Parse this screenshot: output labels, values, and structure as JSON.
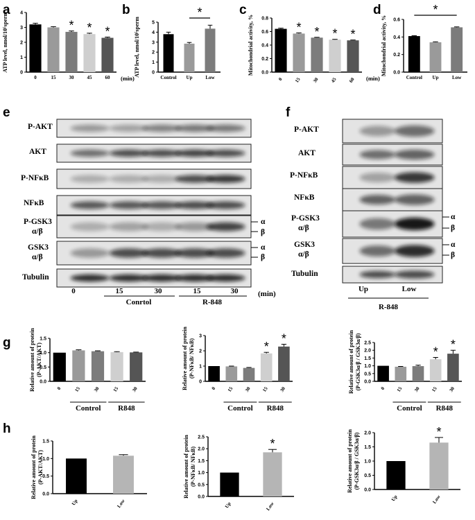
{
  "panel_letters": [
    "a",
    "b",
    "c",
    "d",
    "e",
    "f",
    "g",
    "h"
  ],
  "unit_min": "(min)",
  "colors": {
    "black": "#000000",
    "g1": "#9a9a9a",
    "g2": "#7c7c7c",
    "g3": "#cfcfcf",
    "g4": "#555555",
    "light": "#b5b5b5"
  },
  "chart_data": [
    {
      "id": "a",
      "type": "bar",
      "ylabel": "ATP level, nmol/10⁵sperm",
      "categories": [
        "0",
        "15",
        "30",
        "45",
        "60"
      ],
      "values": [
        3.2,
        3.0,
        2.7,
        2.55,
        2.3
      ],
      "errors": [
        0.08,
        0.05,
        0.06,
        0.06,
        0.05
      ],
      "ylim": [
        0,
        4
      ],
      "yticks": [
        "0",
        "1",
        "2",
        "3",
        "4"
      ],
      "significant": [
        false,
        false,
        true,
        true,
        true
      ],
      "xunit": "(min)"
    },
    {
      "id": "b",
      "type": "bar",
      "ylabel": "ATP level, nmol/10⁵sperm",
      "categories": [
        "Control",
        "Up",
        "Low"
      ],
      "values": [
        3.8,
        2.85,
        4.35
      ],
      "errors": [
        0.2,
        0.12,
        0.35
      ],
      "ylim": [
        0,
        5
      ],
      "yticks": [
        "0",
        "1",
        "2",
        "3",
        "4",
        "5"
      ],
      "bracket": [
        1,
        2
      ]
    },
    {
      "id": "c",
      "type": "bar",
      "ylabel": "Mitochondrial activity, %",
      "categories": [
        "0",
        "15",
        "30",
        "45",
        "60"
      ],
      "values": [
        0.64,
        0.57,
        0.51,
        0.48,
        0.47
      ],
      "errors": [
        0.01,
        0.01,
        0.005,
        0.005,
        0.005
      ],
      "ylim": [
        0,
        0.8
      ],
      "yticks": [
        "0.0",
        "0.2",
        "0.4",
        "0.6",
        "0.8"
      ],
      "significant": [
        false,
        true,
        true,
        true,
        true
      ],
      "xunit": "(min)"
    },
    {
      "id": "d",
      "type": "bar",
      "ylabel": "Mitochondrial activity, %",
      "categories": [
        "Control",
        "Up",
        "Low"
      ],
      "values": [
        0.41,
        0.34,
        0.51
      ],
      "errors": [
        0.005,
        0.005,
        0.005
      ],
      "ylim": [
        0,
        0.6
      ],
      "yticks": [
        "0.0",
        "0.2",
        "0.4",
        "0.6"
      ],
      "bracket": [
        0,
        2
      ]
    },
    {
      "id": "g1",
      "type": "bar",
      "ylabel": "Relative amount of protein (P-AKT/AKT)",
      "categories": [
        "0",
        "15",
        "30",
        "15",
        "30"
      ],
      "values": [
        1.0,
        1.08,
        1.05,
        1.02,
        1.01
      ],
      "errors": [
        0,
        0.02,
        0.015,
        0.015,
        0.01
      ],
      "ylim": [
        0,
        1.5
      ],
      "yticks": [
        "0.0",
        "0.5",
        "1.0",
        "1.5"
      ],
      "significant": [
        false,
        false,
        false,
        false,
        false
      ],
      "groups": [
        "Control",
        "R848"
      ]
    },
    {
      "id": "g2",
      "type": "bar",
      "ylabel": "Relative amount of protein (P-NFκB/ NFκB)",
      "categories": [
        "0",
        "15",
        "30",
        "15",
        "30"
      ],
      "values": [
        1.0,
        0.98,
        0.88,
        1.83,
        2.28
      ],
      "errors": [
        0,
        0.02,
        0.03,
        0.07,
        0.15
      ],
      "ylim": [
        0,
        3
      ],
      "yticks": [
        "0",
        "1",
        "2",
        "3"
      ],
      "significant": [
        false,
        false,
        false,
        true,
        true
      ],
      "groups": [
        "Control",
        "R848"
      ]
    },
    {
      "id": "g3",
      "type": "bar",
      "ylabel": "Relative amount of protein (P-GSK3α/β / GSK3α/β)",
      "categories": [
        "0",
        "15",
        "30",
        "15",
        "30"
      ],
      "values": [
        1.0,
        0.94,
        0.98,
        1.42,
        1.78
      ],
      "errors": [
        0,
        0.02,
        0.06,
        0.12,
        0.22
      ],
      "ylim": [
        0,
        2.5
      ],
      "yticks": [
        "0.0",
        "0.5",
        "1.0",
        "1.5",
        "2.0",
        "2.5"
      ],
      "significant": [
        false,
        false,
        false,
        true,
        true
      ],
      "groups": [
        "Control",
        "R848"
      ]
    },
    {
      "id": "h1",
      "type": "bar",
      "ylabel": "Relative amount of protein (P-AKT/AKT)",
      "categories": [
        "Up",
        "Low"
      ],
      "values": [
        1.0,
        1.08
      ],
      "errors": [
        0,
        0.03
      ],
      "ylim": [
        0,
        1.5
      ],
      "yticks": [
        "0.0",
        "0.5",
        "1.0",
        "1.5"
      ],
      "significant": [
        false,
        false
      ]
    },
    {
      "id": "h2",
      "type": "bar",
      "ylabel": "Relative amount of protein (P-NFκB/ NFκB)",
      "categories": [
        "Up",
        "Low"
      ],
      "values": [
        1.0,
        1.85
      ],
      "errors": [
        0,
        0.12
      ],
      "ylim": [
        0,
        2.5
      ],
      "yticks": [
        "0.0",
        "0.5",
        "1.0",
        "1.5",
        "2.0",
        "2.5"
      ],
      "significant": [
        false,
        true
      ]
    },
    {
      "id": "h3",
      "type": "bar",
      "ylabel": "Relative amount of protein (P-GSK3α/β / GSK3α/β)",
      "categories": [
        "Up",
        "Low"
      ],
      "values": [
        1.0,
        1.65
      ],
      "errors": [
        0,
        0.18
      ],
      "ylim": [
        0,
        2.0
      ],
      "yticks": [
        "0.0",
        "0.5",
        "1.0",
        "1.5",
        "2.0"
      ],
      "significant": [
        false,
        true
      ]
    }
  ],
  "blot_e": {
    "labels": [
      "P-AKT",
      "AKT",
      "P-NFκB",
      "NFκB",
      "P-GSK3",
      "α/β",
      "GSK3",
      "α/β",
      "Tubulin"
    ],
    "isoforms": [
      "α",
      "β",
      "α",
      "β"
    ],
    "lanes": [
      "0",
      "15",
      "30",
      "15",
      "30"
    ],
    "groups": [
      "Conrtol",
      "R-848"
    ],
    "unit": "(min)"
  },
  "blot_f": {
    "labels": [
      "P-AKT",
      "AKT",
      "P-NFκB",
      "NFκB",
      "P-GSK3",
      "α/β",
      "GSK3",
      "α/β",
      "Tubulin"
    ],
    "isoforms": [
      "α",
      "β",
      "α",
      "β"
    ],
    "lanes": [
      "Up",
      "Low"
    ],
    "group": "R-848"
  }
}
